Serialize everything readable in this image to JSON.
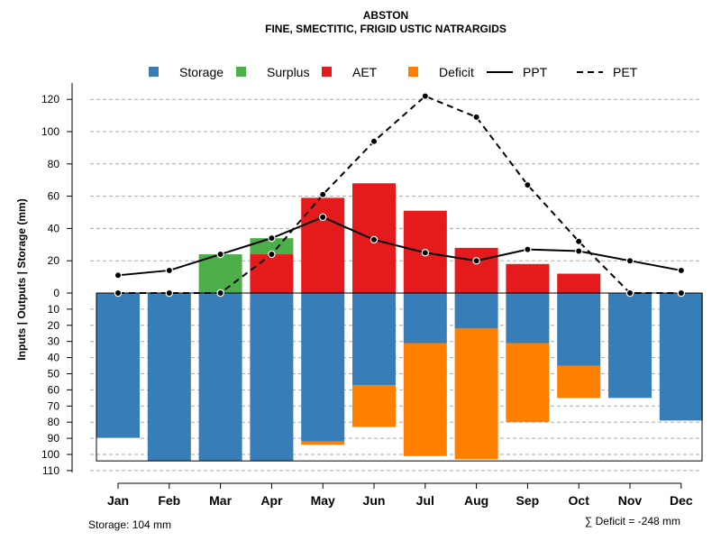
{
  "chart_data": {
    "type": "bar",
    "title": "ABSTON",
    "subtitle": "FINE, SMECTITIC, FRIGID USTIC NATRARGIDS",
    "ylabel": "Inputs | Outputs | Storage    (mm)",
    "categories": [
      "Jan",
      "Feb",
      "Mar",
      "Apr",
      "May",
      "Jun",
      "Jul",
      "Aug",
      "Sep",
      "Oct",
      "Nov",
      "Dec"
    ],
    "ylim_top": [
      0,
      130
    ],
    "ylim_bottom": [
      0,
      110
    ],
    "yticks_top": [
      0,
      20,
      40,
      60,
      80,
      100,
      120
    ],
    "yticks_bottom": [
      10,
      20,
      30,
      40,
      50,
      60,
      70,
      80,
      90,
      100,
      110
    ],
    "storage_capacity": 104,
    "series": [
      {
        "name": "Storage",
        "color": "#377EB8",
        "values": [
          90,
          104,
          104,
          104,
          92,
          57,
          31,
          22,
          31,
          45,
          65,
          79
        ]
      },
      {
        "name": "Surplus",
        "color": "#4DAF4A",
        "values": [
          0,
          0,
          24,
          10,
          0,
          0,
          0,
          0,
          0,
          0,
          0,
          0
        ]
      },
      {
        "name": "AET",
        "color": "#E41A1C",
        "values": [
          0,
          0,
          0,
          24,
          59,
          68,
          51,
          28,
          18,
          12,
          0,
          0
        ]
      },
      {
        "name": "Deficit",
        "color": "#FF7F00",
        "values": [
          0,
          0,
          0,
          0,
          2,
          26,
          70,
          81,
          49,
          20,
          0,
          0
        ]
      },
      {
        "name": "PPT",
        "color": "#000000",
        "values": [
          11,
          14,
          24,
          34,
          47,
          33,
          25,
          20,
          27,
          26,
          20,
          14
        ]
      },
      {
        "name": "PET",
        "color": "#000000",
        "values": [
          0,
          0,
          0,
          24,
          61,
          94,
          122,
          109,
          67,
          32,
          0,
          0
        ]
      }
    ],
    "legend": [
      {
        "name": "Storage",
        "kind": "box",
        "color": "#377EB8"
      },
      {
        "name": "Surplus",
        "kind": "box",
        "color": "#4DAF4A"
      },
      {
        "name": "AET",
        "kind": "box",
        "color": "#E41A1C"
      },
      {
        "name": "Deficit",
        "kind": "box",
        "color": "#FF7F00"
      },
      {
        "name": "PPT",
        "kind": "solid",
        "color": "#000000"
      },
      {
        "name": "PET",
        "kind": "dashed",
        "color": "#000000"
      }
    ],
    "legend_position": "top",
    "grid": true,
    "storage_note": "Storage: 104 mm",
    "deficit_note": "∑ Deficit = -248 mm"
  }
}
